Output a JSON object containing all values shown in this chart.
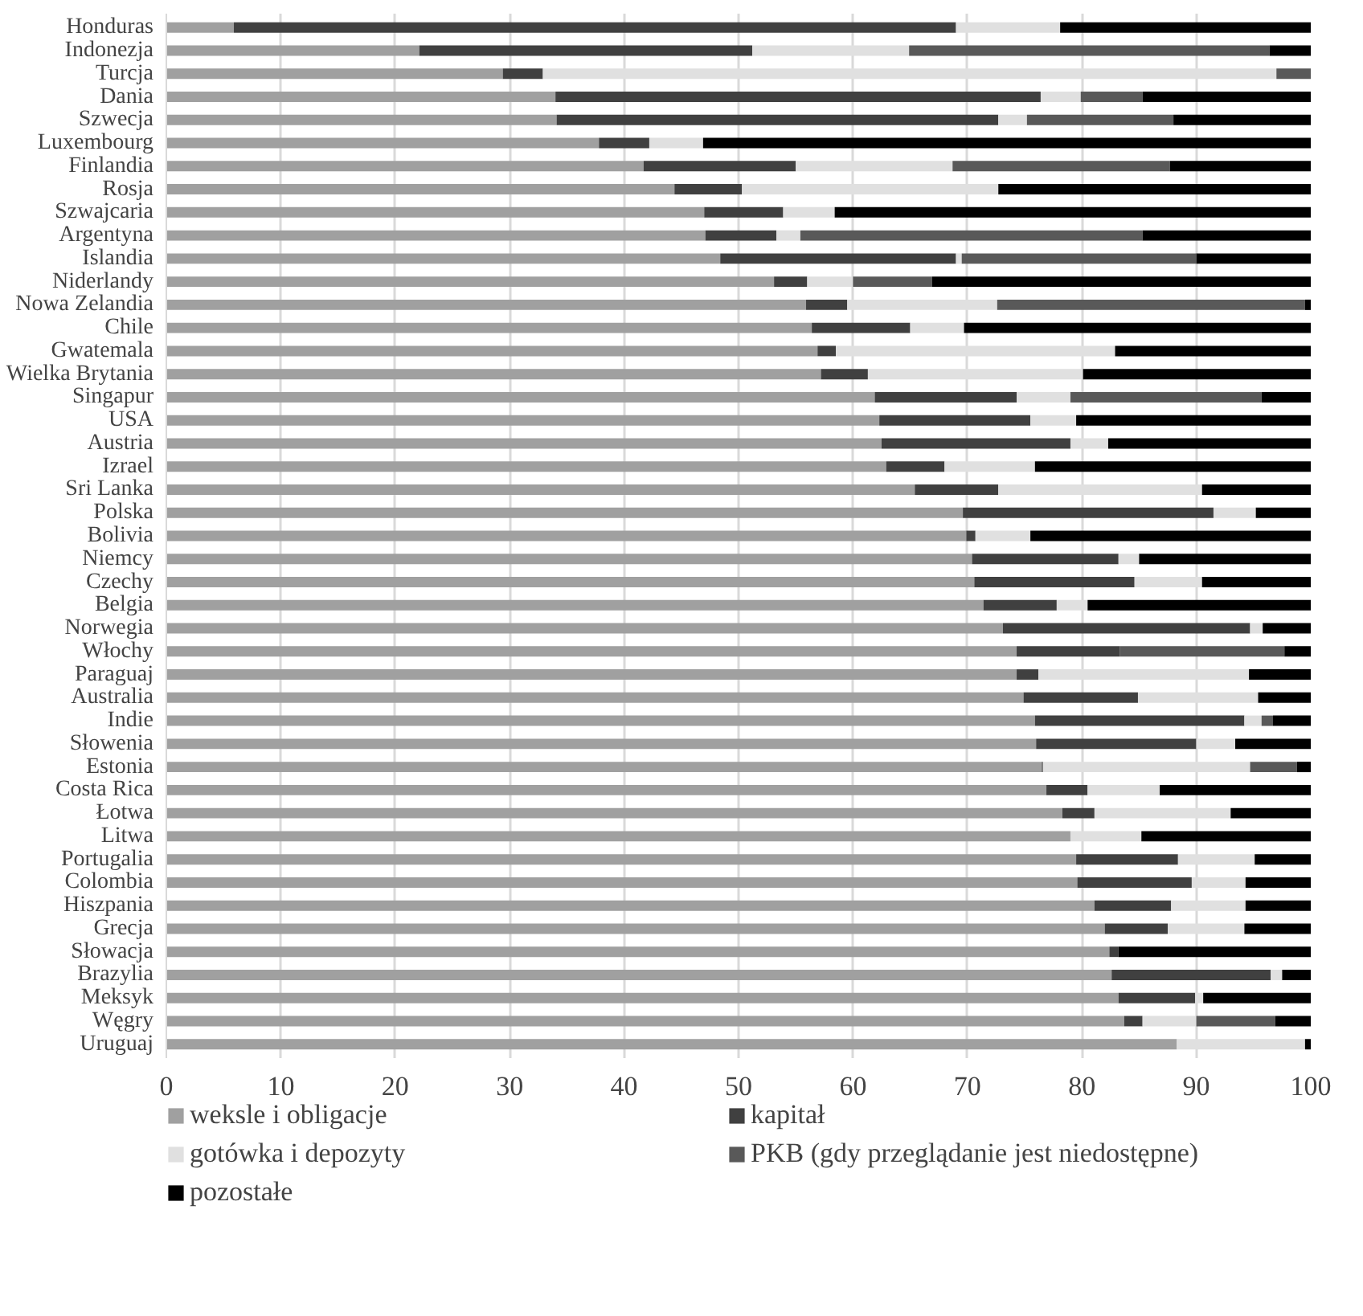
{
  "chart_data": {
    "type": "bar",
    "orientation": "horizontal",
    "stacked": true,
    "categories": [
      "Honduras",
      "Indonezja",
      "Turcja",
      "Dania",
      "Szwecja",
      "Luxembourg",
      "Finlandia",
      "Rosja",
      "Szwajcaria",
      "Argentyna",
      "Islandia",
      "Niderlandy",
      "Nowa Zelandia",
      "Chile",
      "Gwatemala",
      "Wielka Brytania",
      "Singapur",
      "USA",
      "Austria",
      "Izrael",
      "Sri Lanka",
      "Polska",
      "Bolivia",
      "Niemcy",
      "Czechy",
      "Belgia",
      "Norwegia",
      "Włochy",
      "Paraguaj",
      "Australia",
      "Indie",
      "Słowenia",
      "Estonia",
      "Costa Rica",
      "Łotwa",
      "Litwa",
      "Portugalia",
      "Colombia",
      "Hiszpania",
      "Grecja",
      "Słowacja",
      "Brazylia",
      "Meksyk",
      "Węgry",
      "Uruguaj"
    ],
    "series": [
      {
        "name": "weksle i obligacje",
        "color": "#a0a0a0",
        "values": [
          5.9,
          22.1,
          29.4,
          34.0,
          34.1,
          37.8,
          41.7,
          44.4,
          47.0,
          47.1,
          48.4,
          53.1,
          55.9,
          56.4,
          56.9,
          57.2,
          61.9,
          62.3,
          62.5,
          62.9,
          65.4,
          69.6,
          69.9,
          70.4,
          70.6,
          71.4,
          73.1,
          74.3,
          74.3,
          74.9,
          75.9,
          76.0,
          76.5,
          76.9,
          78.3,
          79.0,
          79.5,
          79.6,
          81.1,
          82.0,
          82.4,
          82.6,
          83.2,
          83.7,
          88.3
        ]
      },
      {
        "name": "kapitał",
        "color": "#404040",
        "values": [
          63.1,
          29.1,
          3.5,
          42.4,
          38.6,
          4.4,
          13.3,
          5.9,
          6.9,
          6.2,
          20.6,
          2.9,
          3.6,
          8.6,
          1.6,
          4.1,
          12.4,
          13.2,
          16.5,
          5.1,
          7.3,
          21.9,
          0.8,
          12.8,
          14.0,
          6.4,
          21.6,
          9.0,
          1.9,
          10.0,
          18.3,
          14.0,
          0.1,
          3.6,
          2.8,
          0,
          8.9,
          10.0,
          6.7,
          5.5,
          0.8,
          13.9,
          6.7,
          1.6,
          0
        ]
      },
      {
        "name": "gotówka i depozyty",
        "color": "#e0e0e0",
        "values": [
          9.1,
          13.7,
          64.1,
          3.5,
          2.5,
          4.7,
          13.7,
          22.4,
          4.5,
          2.1,
          0.5,
          4.0,
          13.1,
          4.7,
          24.4,
          18.8,
          4.7,
          4.0,
          3.3,
          7.9,
          17.8,
          3.7,
          4.8,
          1.8,
          5.9,
          2.7,
          1.1,
          0,
          18.4,
          10.5,
          1.5,
          3.4,
          18.1,
          6.3,
          11.9,
          6.2,
          6.7,
          4.7,
          6.5,
          6.7,
          0,
          1.0,
          0.7,
          4.7,
          11.2
        ]
      },
      {
        "name": "PKB (gdy przeglądanie jest niedostępne)",
        "color": "#595959",
        "values": [
          0,
          31.5,
          3.0,
          5.4,
          12.8,
          0,
          19.0,
          0,
          0,
          29.9,
          20.5,
          6.9,
          26.9,
          0,
          0,
          0,
          16.7,
          0,
          0,
          0,
          0,
          0,
          0,
          0,
          0,
          0,
          0,
          14.4,
          0,
          0,
          1.0,
          0,
          4.1,
          0,
          0,
          0,
          0,
          0,
          0,
          0,
          0,
          0,
          0,
          6.9,
          0
        ]
      },
      {
        "name": "pozostałe",
        "color": "#000000",
        "values": [
          21.9,
          3.6,
          0,
          14.7,
          12.0,
          53.1,
          12.3,
          27.3,
          41.6,
          14.7,
          10.0,
          33.1,
          0.5,
          30.3,
          17.1,
          19.9,
          4.3,
          20.5,
          17.7,
          24.1,
          9.5,
          4.8,
          24.5,
          15.0,
          9.5,
          19.5,
          4.2,
          2.3,
          5.4,
          4.6,
          3.3,
          6.6,
          1.3,
          13.2,
          7.0,
          14.8,
          4.9,
          5.7,
          5.7,
          5.8,
          16.8,
          2.5,
          9.4,
          3.1,
          0.5
        ]
      }
    ],
    "xlim": [
      0,
      100
    ],
    "xticks": [
      0,
      10,
      20,
      30,
      40,
      50,
      60,
      70,
      80,
      90,
      100
    ],
    "grid": "x",
    "legend": "bottom"
  }
}
